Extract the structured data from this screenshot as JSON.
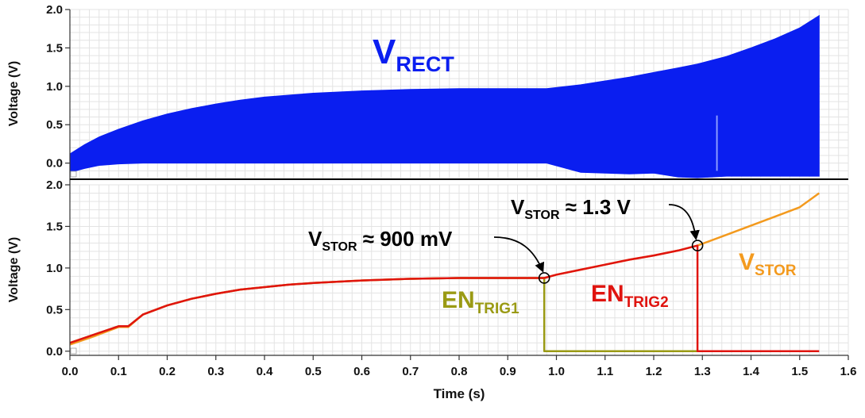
{
  "colors": {
    "vrect": "#0a1ef0",
    "vstor": "#f39a1e",
    "vstor_trace": "#e0140f",
    "en_trig1": "#9a9a14",
    "en_trig2": "#e0140f",
    "grid": "#e3e3e3",
    "text": "#111111"
  },
  "chart_data": [
    {
      "type": "line",
      "panel": "top",
      "ylabel": "Voltage (V)",
      "yticks": [
        "2.0",
        "1.5",
        "1.0",
        "0.5",
        "0.0"
      ],
      "ylim": [
        -0.2,
        2.0
      ],
      "xlim": [
        0.0,
        1.6
      ],
      "grid": true,
      "series": [
        {
          "name": "V_RECT",
          "label_main": "V",
          "label_sub": "RECT",
          "kind": "envelope",
          "x": [
            0.0,
            0.03,
            0.06,
            0.1,
            0.15,
            0.2,
            0.25,
            0.3,
            0.35,
            0.4,
            0.5,
            0.6,
            0.7,
            0.8,
            0.9,
            0.98,
            1.05,
            1.1,
            1.15,
            1.2,
            1.25,
            1.29,
            1.35,
            1.4,
            1.45,
            1.5,
            1.54
          ],
          "upper": [
            0.12,
            0.24,
            0.34,
            0.44,
            0.55,
            0.64,
            0.71,
            0.77,
            0.82,
            0.86,
            0.91,
            0.94,
            0.96,
            0.97,
            0.97,
            0.97,
            1.02,
            1.07,
            1.12,
            1.18,
            1.24,
            1.29,
            1.39,
            1.5,
            1.62,
            1.76,
            1.92
          ],
          "lower": [
            -0.12,
            -0.07,
            -0.03,
            -0.01,
            0.0,
            0.0,
            0.0,
            0.0,
            0.0,
            0.0,
            0.0,
            0.0,
            0.0,
            0.0,
            0.0,
            0.0,
            -0.12,
            -0.13,
            -0.14,
            -0.13,
            -0.18,
            -0.19,
            -0.17,
            -0.17,
            -0.17,
            -0.17,
            -0.17
          ]
        }
      ]
    },
    {
      "type": "line",
      "panel": "bottom",
      "xlabel": "Time (s)",
      "ylabel": "Voltage (V)",
      "xticks": [
        "0.0",
        "0.1",
        "0.2",
        "0.3",
        "0.4",
        "0.5",
        "0.6",
        "0.7",
        "0.8",
        "0.9",
        "1.0",
        "1.1",
        "1.2",
        "1.3",
        "1.4",
        "1.5",
        "1.6"
      ],
      "yticks": [
        "2.0",
        "1.5",
        "1.0",
        "0.5",
        "0.0"
      ],
      "xlim": [
        0.0,
        1.6
      ],
      "ylim": [
        -0.05,
        2.0
      ],
      "grid": true,
      "series": [
        {
          "name": "V_STOR",
          "label_main": "V",
          "label_sub": "STOR",
          "x": [
            0.0,
            0.05,
            0.1,
            0.12,
            0.15,
            0.2,
            0.25,
            0.3,
            0.35,
            0.4,
            0.45,
            0.5,
            0.6,
            0.7,
            0.8,
            0.9,
            0.975,
            1.0,
            1.05,
            1.1,
            1.15,
            1.2,
            1.25,
            1.29,
            1.35,
            1.4,
            1.45,
            1.5,
            1.54
          ],
          "y": [
            0.08,
            0.18,
            0.29,
            0.29,
            0.44,
            0.55,
            0.63,
            0.69,
            0.74,
            0.77,
            0.8,
            0.82,
            0.85,
            0.87,
            0.88,
            0.88,
            0.88,
            0.92,
            0.98,
            1.04,
            1.1,
            1.15,
            1.21,
            1.27,
            1.4,
            1.51,
            1.62,
            1.73,
            1.9
          ]
        },
        {
          "name": "EN_TRIG1",
          "label_main": "EN",
          "label_sub": "TRIG1",
          "x": [
            0.0,
            0.05,
            0.1,
            0.12,
            0.15,
            0.2,
            0.25,
            0.3,
            0.35,
            0.4,
            0.45,
            0.5,
            0.6,
            0.7,
            0.8,
            0.9,
            0.975,
            0.975,
            1.2,
            1.29
          ],
          "y": [
            0.1,
            0.2,
            0.3,
            0.3,
            0.44,
            0.55,
            0.63,
            0.69,
            0.74,
            0.77,
            0.8,
            0.82,
            0.85,
            0.87,
            0.88,
            0.88,
            0.88,
            0.0,
            0.0,
            0.0
          ]
        },
        {
          "name": "EN_TRIG2",
          "label_main": "EN",
          "label_sub": "TRIG2",
          "x": [
            0.0,
            0.05,
            0.1,
            0.12,
            0.15,
            0.2,
            0.25,
            0.3,
            0.35,
            0.4,
            0.45,
            0.5,
            0.6,
            0.7,
            0.8,
            0.9,
            0.975,
            1.0,
            1.05,
            1.1,
            1.15,
            1.2,
            1.25,
            1.29,
            1.29,
            1.4,
            1.54
          ],
          "y": [
            0.1,
            0.2,
            0.3,
            0.3,
            0.44,
            0.55,
            0.63,
            0.69,
            0.74,
            0.77,
            0.8,
            0.82,
            0.85,
            0.87,
            0.88,
            0.88,
            0.88,
            0.92,
            0.98,
            1.04,
            1.1,
            1.15,
            1.21,
            1.27,
            0.0,
            0.0,
            0.0
          ]
        }
      ],
      "annotations": [
        {
          "main": "V",
          "sub": "STOR",
          "rest": " ≈ 900 mV",
          "x": 0.975,
          "y": 0.88
        },
        {
          "main": "V",
          "sub": "STOR",
          "rest": " ≈ 1.3 V",
          "x": 1.29,
          "y": 1.27
        }
      ]
    }
  ]
}
